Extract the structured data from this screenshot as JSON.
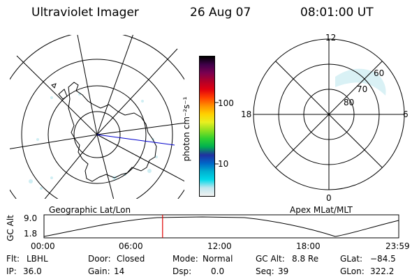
{
  "header": {
    "title": "Ultraviolet Imager",
    "date": "26 Aug 07",
    "time": "08:01:00 UT"
  },
  "left_panel": {
    "caption": "Geographic Lat/Lon"
  },
  "right_panel": {
    "caption": "Apex MLat/MLT",
    "mlt_labels": [
      "12",
      "18",
      "6",
      "0"
    ],
    "mlat_labels": [
      "60",
      "70",
      "80"
    ]
  },
  "colorbar": {
    "axis_label": "photon cm⁻²s⁻¹",
    "ticks": [
      "100",
      "10"
    ],
    "scale": "log",
    "colors": [
      "#f2f2f2",
      "#bfe6ee",
      "#00d8e8",
      "#00b0d0",
      "#0066c8",
      "#2030a0",
      "#00b050",
      "#30d030",
      "#90e020",
      "#e8f020",
      "#ffd000",
      "#ff9000",
      "#ff4000",
      "#e00010",
      "#b0002a",
      "#7a0050",
      "#40004a",
      "#000000"
    ]
  },
  "altitude_plot": {
    "ylabel": "GC Alt",
    "yticks": [
      "9.0",
      "1.8"
    ],
    "xticks": [
      "00:00",
      "06:00",
      "12:00",
      "18:00",
      "23:59"
    ],
    "marker_time": "08:01",
    "marker_color": "#e00000"
  },
  "info": {
    "row1": [
      {
        "key": "Flt:",
        "value": "LBHL"
      },
      {
        "key": "Door:",
        "value": "Closed"
      },
      {
        "key": "Mode:",
        "value": "Normal"
      },
      {
        "key": "GC Alt:",
        "value": "8.8 Re"
      },
      {
        "key": "GLat:",
        "value": "−84.5"
      }
    ],
    "row2": [
      {
        "key": "IP:",
        "value": "36.0"
      },
      {
        "key": "Gain:",
        "value": "14"
      },
      {
        "key": "Dsp:",
        "value": "0.0"
      },
      {
        "key": "Seq:",
        "value": "39"
      },
      {
        "key": "GLon:",
        "value": "322.2"
      }
    ]
  }
}
